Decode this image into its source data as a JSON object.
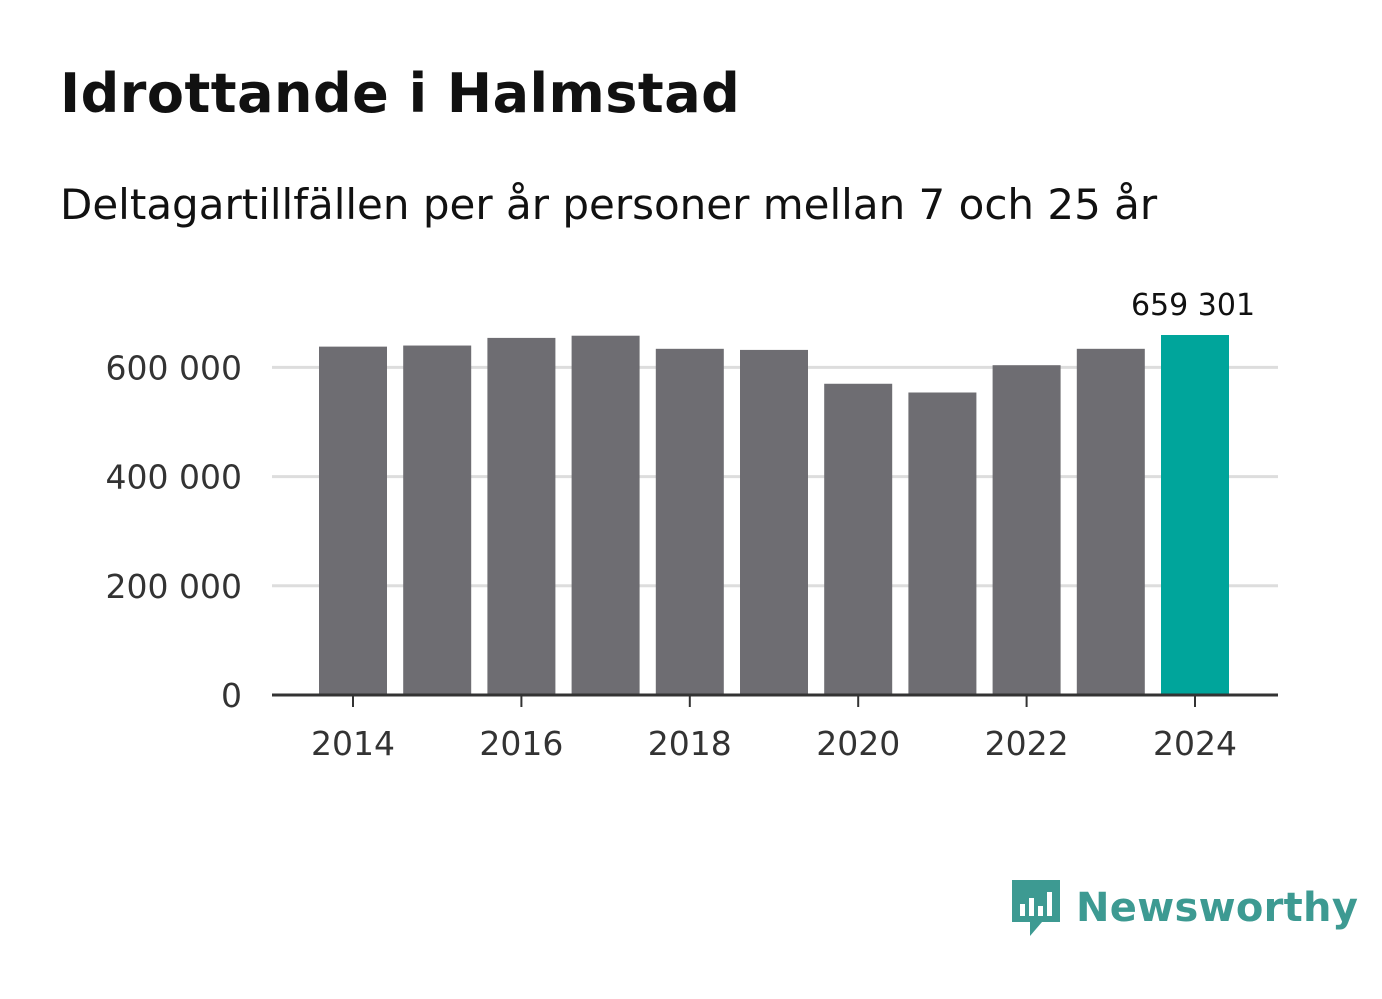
{
  "title": "Idrottande i Halmstad",
  "subtitle": "Deltagartillfällen per år personer mellan 7 och 25 år",
  "brand": {
    "name": "Newsworthy",
    "color": "#3d9a92"
  },
  "colors": {
    "bar": "#6e6d72",
    "highlight": "#00a59b",
    "grid": "#dddddd",
    "axis": "#333333"
  },
  "chart_data": {
    "type": "bar",
    "categories": [
      "2014",
      "2015",
      "2016",
      "2017",
      "2018",
      "2019",
      "2020",
      "2021",
      "2022",
      "2023",
      "2024"
    ],
    "values": [
      638000,
      640000,
      654000,
      658000,
      634000,
      632000,
      570000,
      554000,
      604000,
      634000,
      659301
    ],
    "highlight_index": 10,
    "highlight_label": "659 301",
    "xticks": [
      "2014",
      "2016",
      "2018",
      "2020",
      "2022",
      "2024"
    ],
    "yticks": [
      0,
      200000,
      400000,
      600000
    ],
    "ytick_labels": [
      "0",
      "200 000",
      "400 000",
      "600 000"
    ],
    "ylim": [
      0,
      659301
    ],
    "title": "Idrottande i Halmstad",
    "xlabel": "",
    "ylabel": ""
  }
}
